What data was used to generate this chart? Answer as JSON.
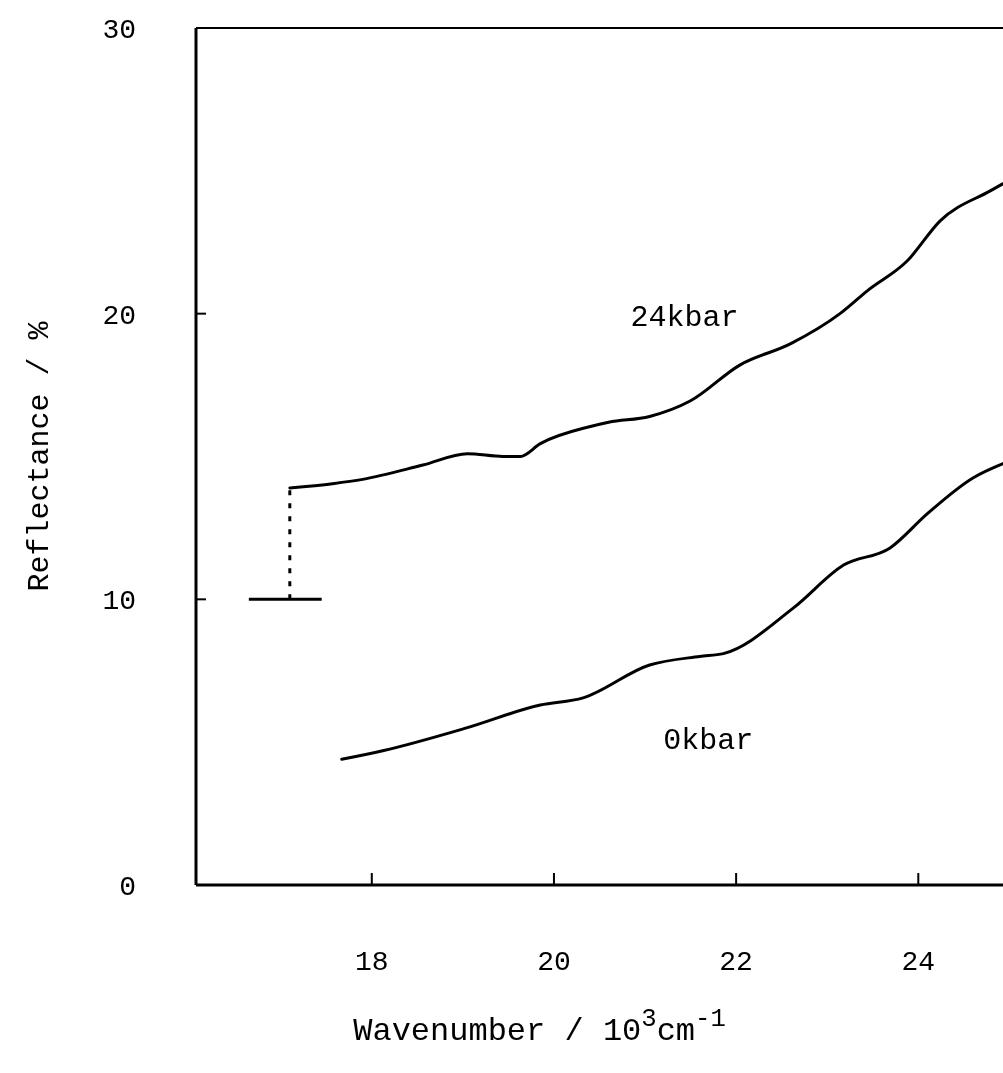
{
  "chart_data": {
    "type": "line",
    "xlabel": "Wavenumber / 10$^{3}$cm$^{-1}$",
    "ylabel": "Reflectance / %",
    "xlim": [
      16.07,
      24.93
    ],
    "xticks": [
      18,
      20,
      22,
      24
    ],
    "ylim": [
      0,
      30
    ],
    "yticks": [
      0,
      10,
      20,
      30
    ],
    "grid": false,
    "marker": "none",
    "line_style": "solid",
    "series": [
      {
        "name": "24kbar",
        "color": "#000000",
        "x": [
          17.1,
          17.57,
          17.9,
          18.56,
          19.05,
          19.44,
          19.63,
          19.85,
          20.4,
          20.6,
          21.05,
          21.5,
          22.04,
          22.6,
          23.14,
          23.44,
          23.88,
          24.24,
          24.79,
          24.93
        ],
        "values": [
          13.9,
          14.05,
          14.2,
          14.7,
          15.1,
          15.0,
          15.0,
          15.45,
          16.05,
          16.2,
          16.4,
          16.95,
          18.2,
          18.95,
          20.0,
          20.8,
          21.85,
          23.25,
          24.3,
          24.55
        ]
      },
      {
        "name": "0kbar",
        "color": "#000000",
        "x": [
          17.67,
          18.12,
          19.04,
          19.85,
          20.32,
          21.05,
          21.6,
          21.86,
          22.63,
          23.18,
          23.69,
          24.1,
          24.6,
          24.93
        ],
        "values": [
          4.4,
          4.7,
          5.5,
          6.3,
          6.55,
          7.7,
          8.0,
          8.1,
          9.7,
          11.2,
          11.8,
          13.0,
          14.25,
          14.75
        ]
      }
    ]
  }
}
